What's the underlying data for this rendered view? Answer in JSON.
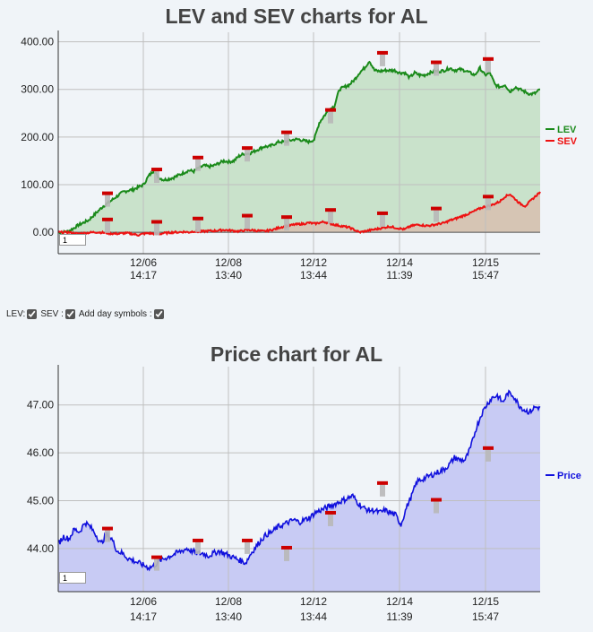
{
  "controls": {
    "lev_label": "LEV:",
    "sev_label": "SEV :",
    "symbols_label": "Add day symbols :"
  },
  "colors": {
    "lev": "#1a8a1a",
    "lev_fill": "#c9e2cb",
    "sev": "#ee1111",
    "sev_fill": "#d8c0b0",
    "price": "#1010dd",
    "price_fill": "#c8cbf4",
    "grid": "#bfbfbf"
  },
  "chart_data": [
    {
      "type": "line",
      "title": "LEV and SEV charts for AL",
      "zoom_value": "1",
      "ylim": [
        -45,
        420
      ],
      "yticks": [
        "400.00",
        "300.00",
        "200.00",
        "100.00",
        "0.00"
      ],
      "ytick_values": [
        400,
        300,
        200,
        100,
        0
      ],
      "x_ticks": [
        {
          "date": "12/06",
          "time": "14:17"
        },
        {
          "date": "12/08",
          "time": "13:40"
        },
        {
          "date": "12/12",
          "time": "13:44"
        },
        {
          "date": "12/14",
          "time": "11:39"
        },
        {
          "date": "12/15",
          "time": "15:47"
        }
      ],
      "grid": true,
      "legend_position": "right",
      "series": [
        {
          "name": "LEV",
          "values": [
            0,
            0,
            2,
            8,
            15,
            20,
            25,
            35,
            45,
            55,
            62,
            70,
            78,
            85,
            88,
            90,
            95,
            100,
            118,
            130,
            115,
            110,
            112,
            115,
            120,
            125,
            130,
            128,
            135,
            140,
            138,
            140,
            145,
            150,
            148,
            150,
            160,
            165,
            165,
            170,
            175,
            180,
            180,
            185,
            190,
            190,
            192,
            195,
            195,
            192,
            190,
            195,
            230,
            245,
            258,
            265,
            300,
            305,
            310,
            320,
            335,
            345,
            360,
            340,
            338,
            340,
            340,
            340,
            335,
            335,
            325,
            335,
            330,
            330,
            335,
            338,
            338,
            340,
            345,
            340,
            342,
            340,
            335,
            330,
            345,
            330,
            335,
            310,
            305,
            310,
            295,
            305,
            300,
            295,
            290,
            292,
            300
          ]
        },
        {
          "name": "SEV",
          "values": [
            0,
            0,
            0,
            -2,
            -3,
            -2,
            -1,
            0,
            0,
            -1,
            -2,
            -3,
            -3,
            -2,
            -2,
            -4,
            -6,
            -3,
            -2,
            -3,
            -4,
            -2,
            -1,
            0,
            0,
            1,
            0,
            2,
            1,
            2,
            3,
            3,
            4,
            5,
            4,
            3,
            2,
            4,
            5,
            4,
            3,
            2,
            4,
            6,
            10,
            12,
            14,
            16,
            17,
            18,
            20,
            18,
            20,
            22,
            19,
            16,
            14,
            12,
            10,
            5,
            0,
            2,
            4,
            6,
            8,
            10,
            12,
            10,
            8,
            6,
            12,
            15,
            16,
            14,
            14,
            16,
            18,
            20,
            25,
            28,
            32,
            36,
            40,
            45,
            50,
            54,
            56,
            60,
            65,
            75,
            80,
            70,
            60,
            55,
            65,
            75,
            85
          ]
        }
      ],
      "day_symbols_lev": [
        80,
        130,
        155,
        175,
        208,
        255,
        375,
        355,
        362
      ],
      "day_symbols_sev": [
        25,
        20,
        27,
        33,
        30,
        45,
        38,
        48,
        73
      ]
    },
    {
      "type": "area",
      "title": "Price chart for AL",
      "zoom_value": "1",
      "ylim": [
        43.1,
        47.8
      ],
      "yticks": [
        "47.00",
        "46.00",
        "45.00",
        "44.00"
      ],
      "ytick_values": [
        47,
        46,
        45,
        44
      ],
      "x_ticks": [
        {
          "date": "12/06",
          "time": "14:17"
        },
        {
          "date": "12/08",
          "time": "13:40"
        },
        {
          "date": "12/12",
          "time": "13:44"
        },
        {
          "date": "12/14",
          "time": "11:39"
        },
        {
          "date": "12/15",
          "time": "15:47"
        }
      ],
      "grid": true,
      "legend_position": "right",
      "series": [
        {
          "name": "Price",
          "values": [
            44.1,
            44.25,
            44.2,
            44.4,
            44.35,
            44.55,
            44.45,
            44.3,
            44.1,
            44.3,
            44.2,
            43.95,
            43.9,
            43.8,
            43.75,
            43.7,
            43.65,
            43.6,
            43.65,
            43.75,
            43.8,
            43.85,
            43.9,
            43.95,
            44.0,
            43.95,
            43.9,
            43.9,
            43.85,
            43.9,
            43.95,
            43.9,
            43.85,
            43.8,
            43.75,
            43.7,
            43.9,
            44.05,
            44.2,
            44.3,
            44.35,
            44.45,
            44.5,
            44.55,
            44.6,
            44.55,
            44.6,
            44.65,
            44.75,
            44.8,
            44.85,
            44.9,
            44.95,
            45.0,
            45.05,
            45.1,
            44.95,
            44.85,
            44.8,
            44.8,
            44.75,
            44.8,
            44.75,
            44.7,
            44.5,
            44.85,
            45.1,
            45.4,
            45.45,
            45.5,
            45.55,
            45.6,
            45.65,
            45.75,
            45.9,
            45.85,
            45.85,
            46.1,
            46.5,
            46.8,
            47.0,
            47.15,
            47.2,
            47.05,
            47.25,
            47.2,
            47.0,
            46.9,
            46.85,
            46.95,
            46.95
          ]
        }
      ],
      "day_symbols": [
        44.4,
        43.8,
        44.15,
        44.15,
        44.0,
        44.73,
        45.35,
        45.0,
        46.08
      ]
    }
  ]
}
